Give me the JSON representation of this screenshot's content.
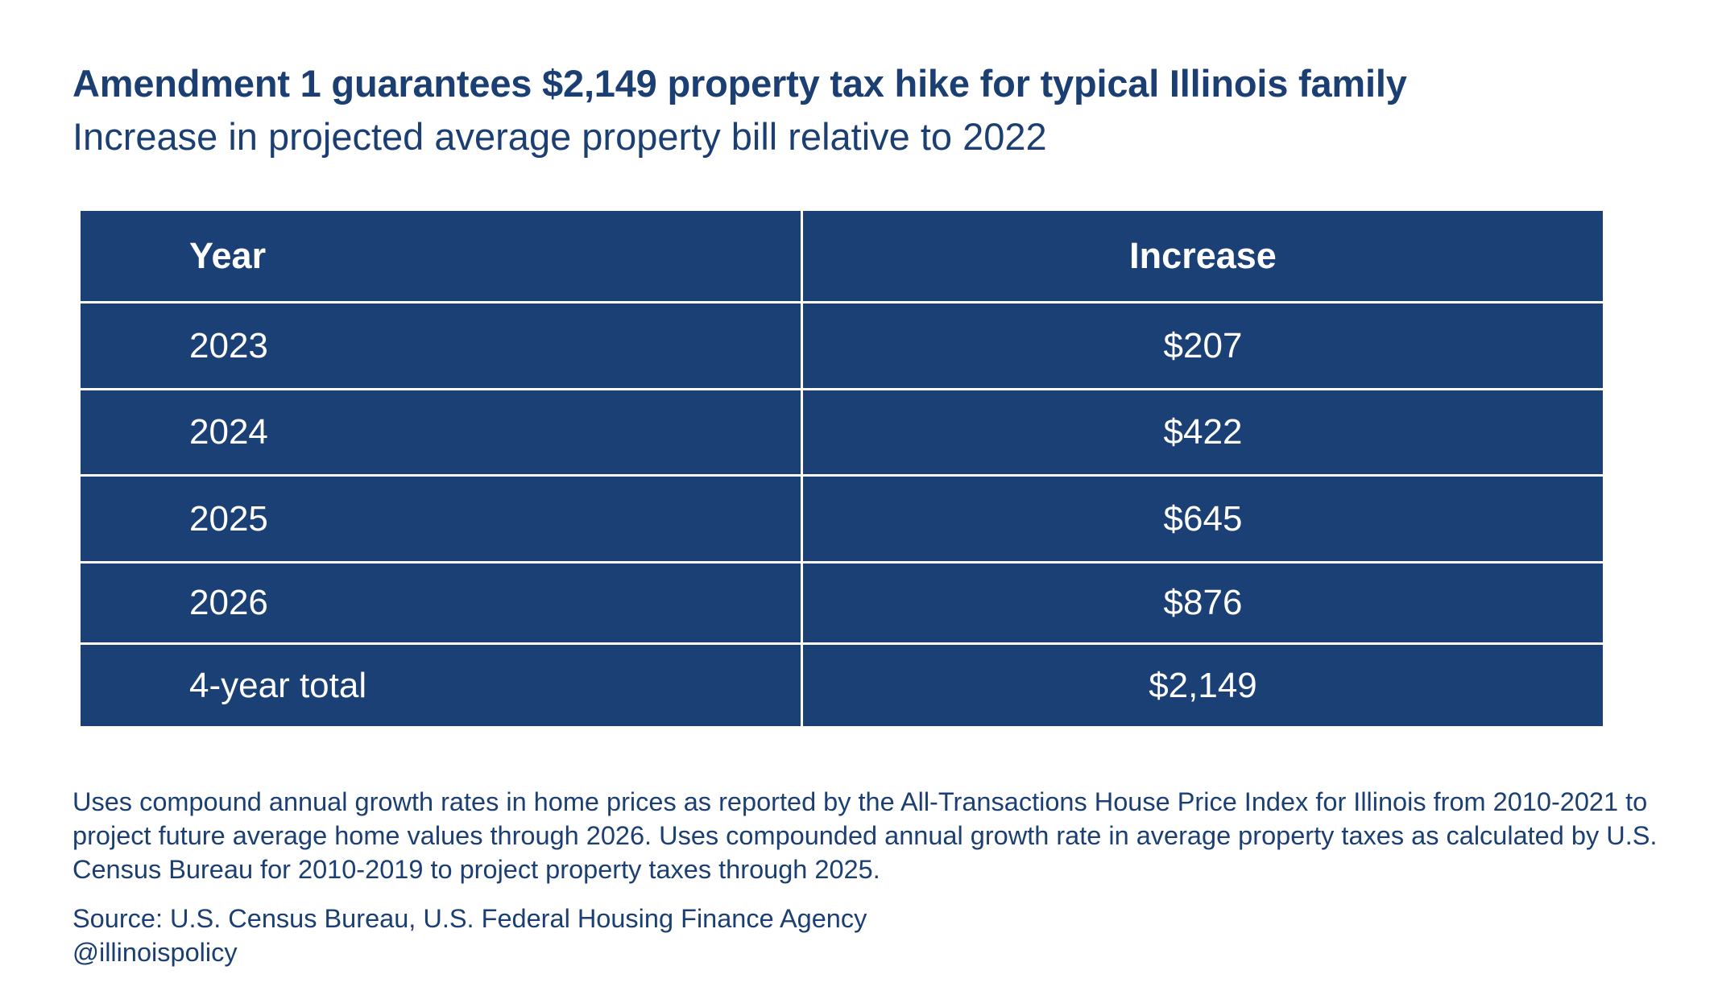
{
  "chart_data": {
    "type": "table",
    "title": "Amendment 1 guarantees $2,149 property tax hike for typical Illinois family",
    "subtitle": "Increase in projected average property bill relative to 2022",
    "columns": [
      "Year",
      "Increase"
    ],
    "rows": [
      [
        "2023",
        "$207"
      ],
      [
        "2024",
        "$422"
      ],
      [
        "2025",
        "$645"
      ],
      [
        "2026",
        "$876"
      ],
      [
        "4-year total",
        "$2,149"
      ]
    ],
    "values": [
      207,
      422,
      645,
      876,
      2149
    ]
  },
  "note": "Uses compound annual growth rates in home prices as reported by the All-Transactions House Price Index for Illinois from 2010-2021 to project future average home values through 2026. Uses compounded annual growth rate in average property taxes as calculated by U.S. Census Bureau for 2010-2019 to project property taxes through 2025.",
  "source": "Source: U.S. Census Bureau, U.S. Federal Housing Finance Agency",
  "handle": "@illinoispolicy",
  "colors": {
    "table_fill": "#1b4075",
    "text": "#1b3f73",
    "cell_text": "#ffffff"
  }
}
